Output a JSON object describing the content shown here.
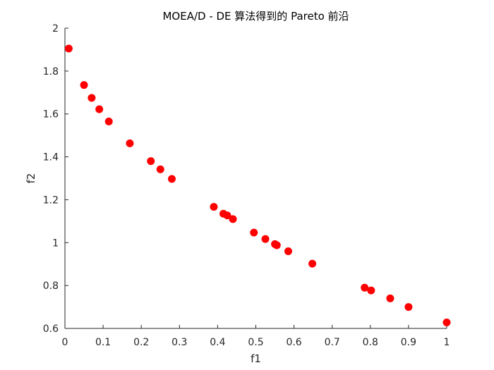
{
  "chart_data": {
    "type": "scatter",
    "title": "MOEA/D - DE 算法得到的 Pareto 前沿",
    "xlabel": "f1",
    "ylabel": "f2",
    "xlim": [
      0,
      1
    ],
    "ylim": [
      0.6,
      2
    ],
    "xticks": [
      0,
      0.1,
      0.2,
      0.3,
      0.4,
      0.5,
      0.6,
      0.7,
      0.8,
      0.9,
      1
    ],
    "yticks": [
      0.6,
      0.8,
      1,
      1.2,
      1.4,
      1.6,
      1.8,
      2
    ],
    "xtick_labels": [
      "0",
      "0.1",
      "0.2",
      "0.3",
      "0.4",
      "0.5",
      "0.6",
      "0.7",
      "0.8",
      "0.9",
      "1"
    ],
    "ytick_labels": [
      "0.6",
      "0.8",
      "1",
      "1.2",
      "1.4",
      "1.6",
      "1.8",
      "2"
    ],
    "grid": false,
    "marker_color": "#ff0000",
    "axis_color": "#262626",
    "x": [
      0.01,
      0.05,
      0.07,
      0.09,
      0.115,
      0.17,
      0.225,
      0.25,
      0.28,
      0.39,
      0.415,
      0.425,
      0.44,
      0.495,
      0.525,
      0.55,
      0.555,
      0.585,
      0.648,
      0.785,
      0.802,
      0.852,
      0.9,
      1.0
    ],
    "y": [
      1.905,
      1.735,
      1.675,
      1.622,
      1.565,
      1.463,
      1.38,
      1.342,
      1.297,
      1.167,
      1.135,
      1.127,
      1.11,
      1.047,
      1.017,
      0.993,
      0.988,
      0.96,
      0.902,
      0.79,
      0.777,
      0.74,
      0.7,
      0.628
    ]
  }
}
